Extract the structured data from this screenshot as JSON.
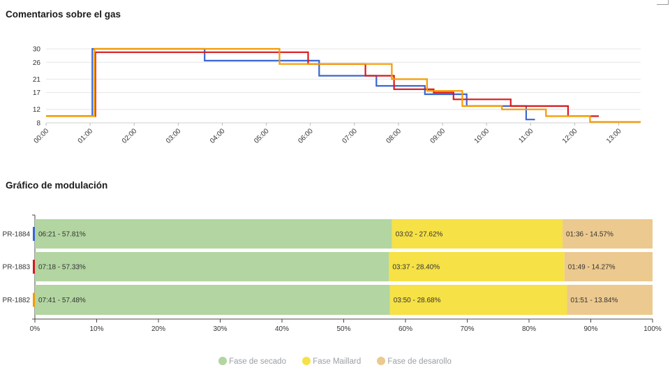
{
  "gas_chart_title": "Comentarios sobre el gas",
  "modulation_chart_title": "Gráfico de modulación",
  "chart_data": [
    {
      "type": "line",
      "title": "Comentarios sobre el gas",
      "x_unit": "minutes",
      "xlim": [
        0,
        13.5
      ],
      "ylim": [
        8,
        30
      ],
      "yticks": [
        8,
        12,
        17,
        21,
        26,
        30
      ],
      "xticks": [
        "00:00",
        "01:00",
        "02:00",
        "03:00",
        "04:00",
        "05:00",
        "06:00",
        "07:00",
        "08:00",
        "09:00",
        "10:00",
        "11:00",
        "12:00",
        "13:00"
      ],
      "grid": true,
      "series": [
        {
          "color": "#3a66d1",
          "points": [
            [
              0,
              10
            ],
            [
              1.05,
              10
            ],
            [
              1.05,
              30
            ],
            [
              3.6,
              30
            ],
            [
              3.6,
              26.5
            ],
            [
              6.2,
              26.5
            ],
            [
              6.2,
              22
            ],
            [
              7.5,
              22
            ],
            [
              7.5,
              19
            ],
            [
              8.6,
              19
            ],
            [
              8.6,
              16.5
            ],
            [
              9.55,
              16.5
            ],
            [
              9.55,
              13
            ],
            [
              10.9,
              13
            ],
            [
              10.9,
              9
            ],
            [
              11.1,
              9
            ]
          ]
        },
        {
          "color": "#d7191c",
          "points": [
            [
              0,
              10
            ],
            [
              1.12,
              10
            ],
            [
              1.12,
              29
            ],
            [
              5.95,
              29
            ],
            [
              5.95,
              25.5
            ],
            [
              7.25,
              25.5
            ],
            [
              7.25,
              22
            ],
            [
              7.9,
              22
            ],
            [
              7.9,
              18
            ],
            [
              8.8,
              18
            ],
            [
              8.8,
              17
            ],
            [
              9.25,
              17
            ],
            [
              9.25,
              15
            ],
            [
              10.55,
              15
            ],
            [
              10.55,
              13
            ],
            [
              11.85,
              13
            ],
            [
              11.85,
              10
            ],
            [
              12.55,
              10
            ]
          ]
        },
        {
          "color": "#f59b00",
          "points": [
            [
              0,
              10
            ],
            [
              1.1,
              10
            ],
            [
              1.1,
              30
            ],
            [
              5.3,
              30
            ],
            [
              5.3,
              25.5
            ],
            [
              7.85,
              25.5
            ],
            [
              7.85,
              21
            ],
            [
              8.65,
              21
            ],
            [
              8.65,
              17.5
            ],
            [
              9.45,
              17.5
            ],
            [
              9.45,
              13
            ],
            [
              10.35,
              13
            ],
            [
              10.35,
              12
            ],
            [
              11.35,
              12
            ],
            [
              11.35,
              10
            ],
            [
              12.35,
              10
            ],
            [
              12.35,
              8.3
            ],
            [
              13.5,
              8.3
            ]
          ]
        }
      ]
    },
    {
      "type": "bar",
      "orientation": "horizontal",
      "stacked": true,
      "title": "Gráfico de modulación",
      "xlim": [
        0,
        100
      ],
      "xticks": [
        "0%",
        "10%",
        "20%",
        "30%",
        "40%",
        "50%",
        "60%",
        "70%",
        "80%",
        "90%",
        "100%"
      ],
      "legend_position": "bottom",
      "categories": [
        "PR-1884",
        "PR-1883",
        "PR-1882"
      ],
      "category_colors": [
        "#3a66d1",
        "#d7191c",
        "#f59b00"
      ],
      "series": [
        {
          "name": "Fase de secado",
          "color": "#b2d5a1",
          "values": [
            57.81,
            57.33,
            57.48
          ],
          "labels": [
            "06:21 - 57.81%",
            "07:18 - 57.33%",
            "07:41 - 57.48%"
          ]
        },
        {
          "name": "Fase Maillard",
          "color": "#f6e146",
          "values": [
            27.62,
            28.4,
            28.68
          ],
          "labels": [
            "03:02 - 27.62%",
            "03:37 - 28.40%",
            "03:50 - 28.68%"
          ]
        },
        {
          "name": "Fase de desarollo",
          "color": "#ecc98e",
          "values": [
            14.57,
            14.27,
            13.84
          ],
          "labels": [
            "01:36 - 14.57%",
            "01:49 - 14.27%",
            "01:51 - 13.84%"
          ]
        }
      ]
    }
  ]
}
